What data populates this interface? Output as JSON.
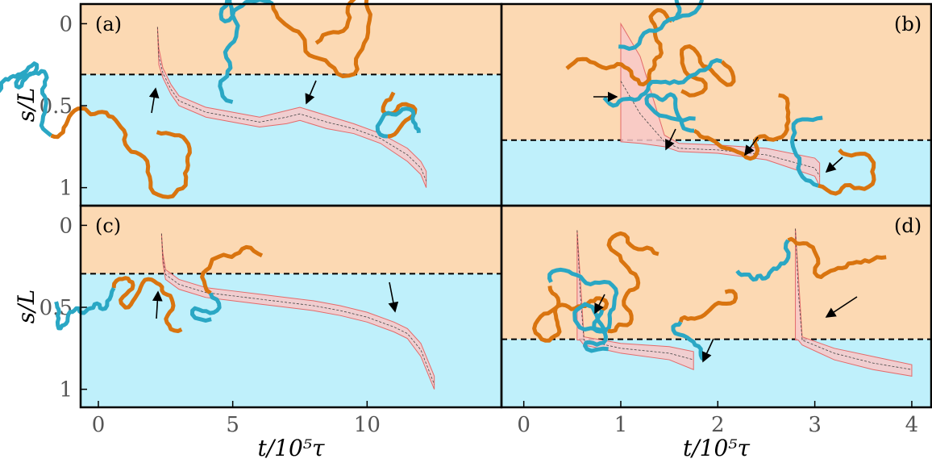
{
  "chart_data": [
    {
      "type": "line",
      "panel_label": "(a)",
      "ylabel": "s/L",
      "xlim": [
        -0.66,
        15
      ],
      "ylim": [
        -0.12,
        1.11
      ],
      "yticks": [
        0,
        0.5,
        1
      ],
      "threshold": 0.31,
      "x": [
        2.2,
        2.25,
        2.4,
        2.7,
        3,
        4,
        5,
        6,
        7,
        7.5,
        8.5,
        9.5,
        10.5,
        11.5,
        12,
        12.2
      ],
      "values": [
        0.02,
        0.2,
        0.3,
        0.4,
        0.47,
        0.54,
        0.57,
        0.6,
        0.57,
        0.55,
        0.6,
        0.64,
        0.7,
        0.8,
        0.88,
        0.96
      ],
      "band_upper": [
        0.02,
        0.15,
        0.27,
        0.37,
        0.44,
        0.51,
        0.54,
        0.57,
        0.53,
        0.51,
        0.56,
        0.61,
        0.67,
        0.76,
        0.84,
        0.9
      ],
      "band_lower": [
        0.02,
        0.25,
        0.33,
        0.43,
        0.5,
        0.57,
        0.6,
        0.63,
        0.61,
        0.59,
        0.64,
        0.67,
        0.73,
        0.84,
        0.92,
        1.0
      ]
    },
    {
      "type": "line",
      "panel_label": "(b)",
      "xlim": [
        -0.23,
        4.2
      ],
      "ylim": [
        -0.12,
        1.11
      ],
      "threshold": 0.71,
      "x": [
        1.0,
        1.2,
        1.45,
        1.6,
        2,
        2.5,
        3,
        3.05
      ],
      "values": [
        0.35,
        0.55,
        0.72,
        0.76,
        0.77,
        0.8,
        0.88,
        0.93
      ],
      "band_upper": [
        0.0,
        0.2,
        0.68,
        0.73,
        0.74,
        0.76,
        0.82,
        0.85
      ],
      "band_lower": [
        0.72,
        0.73,
        0.75,
        0.78,
        0.79,
        0.83,
        0.93,
        0.99
      ]
    },
    {
      "type": "line",
      "panel_label": "(c)",
      "ylabel": "s/L",
      "xlabel": "t/10⁵τ",
      "xlim": [
        -0.66,
        15
      ],
      "ylim": [
        -0.12,
        1.11
      ],
      "xticks": [
        0,
        5,
        10
      ],
      "yticks": [
        0,
        0.5,
        1
      ],
      "threshold": 0.295,
      "x": [
        2.35,
        2.4,
        2.5,
        3,
        4,
        5,
        6,
        7,
        8,
        9,
        10,
        11,
        11.5,
        12,
        12.5
      ],
      "values": [
        0.05,
        0.2,
        0.3,
        0.36,
        0.41,
        0.43,
        0.45,
        0.47,
        0.49,
        0.52,
        0.56,
        0.62,
        0.66,
        0.76,
        0.97
      ],
      "band_upper": [
        0.05,
        0.17,
        0.27,
        0.33,
        0.38,
        0.4,
        0.42,
        0.44,
        0.46,
        0.49,
        0.53,
        0.59,
        0.63,
        0.72,
        0.92
      ],
      "band_lower": [
        0.05,
        0.23,
        0.33,
        0.39,
        0.44,
        0.46,
        0.48,
        0.5,
        0.52,
        0.55,
        0.59,
        0.65,
        0.69,
        0.8,
        1.0
      ]
    },
    {
      "type": "line",
      "panel_label": "(d)",
      "xlabel": "t/10⁵τ",
      "xlim": [
        -0.23,
        4.2
      ],
      "ylim": [
        -0.12,
        1.11
      ],
      "xticks": [
        0,
        1,
        2,
        3,
        4
      ],
      "threshold": 0.695,
      "x": [
        0.55,
        0.58,
        0.62,
        1.0,
        1.5,
        1.75,
        null,
        2.8,
        2.83,
        2.87,
        3.2,
        3.6,
        4.0
      ],
      "values": [
        0.03,
        0.4,
        0.7,
        0.75,
        0.78,
        0.82,
        null,
        0.02,
        0.4,
        0.7,
        0.78,
        0.84,
        0.88
      ],
      "band_upper": [
        0.03,
        0.3,
        0.68,
        0.72,
        0.74,
        0.77,
        null,
        0.02,
        0.3,
        0.68,
        0.75,
        0.8,
        0.85
      ],
      "band_lower": [
        0.7,
        0.7,
        0.73,
        0.78,
        0.82,
        0.88,
        null,
        0.7,
        0.7,
        0.73,
        0.82,
        0.88,
        0.92
      ]
    }
  ]
}
